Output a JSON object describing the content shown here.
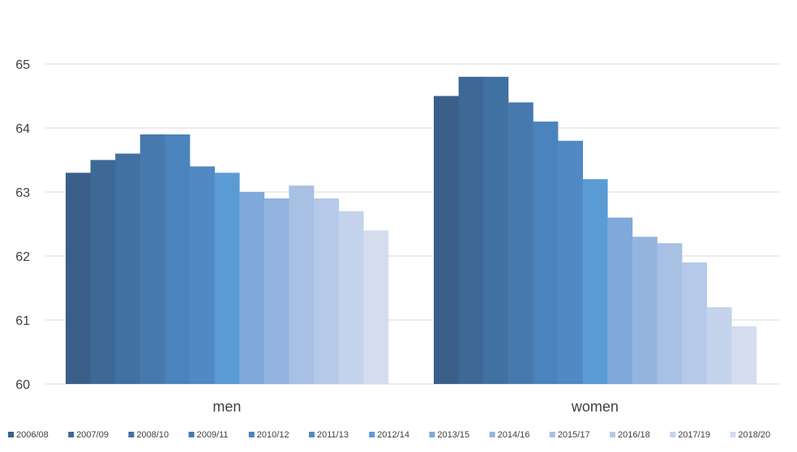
{
  "chart_data": {
    "type": "bar",
    "title": "",
    "xlabel": "",
    "ylabel": "",
    "ylim": [
      60,
      65
    ],
    "yticks": [
      60,
      61,
      62,
      63,
      64,
      65
    ],
    "grid": true,
    "legend_position": "bottom",
    "categories": [
      "men",
      "women"
    ],
    "series": [
      {
        "name": "2006/08",
        "color": "#3a5f8a",
        "values": [
          63.3,
          64.5
        ]
      },
      {
        "name": "2007/09",
        "color": "#3e6896",
        "values": [
          63.5,
          64.8
        ]
      },
      {
        "name": "2008/10",
        "color": "#4170a2",
        "values": [
          63.6,
          64.8
        ]
      },
      {
        "name": "2009/11",
        "color": "#4779ae",
        "values": [
          63.9,
          64.4
        ]
      },
      {
        "name": "2010/12",
        "color": "#4b83bc",
        "values": [
          63.9,
          64.1
        ]
      },
      {
        "name": "2011/13",
        "color": "#5089c4",
        "values": [
          63.4,
          63.8
        ]
      },
      {
        "name": "2012/14",
        "color": "#5b9bd5",
        "values": [
          63.3,
          63.2
        ]
      },
      {
        "name": "2013/15",
        "color": "#7ea9da",
        "values": [
          63.0,
          62.6
        ]
      },
      {
        "name": "2014/16",
        "color": "#93b4df",
        "values": [
          62.9,
          62.3
        ]
      },
      {
        "name": "2015/17",
        "color": "#a7c0e4",
        "values": [
          63.1,
          62.2
        ]
      },
      {
        "name": "2016/18",
        "color": "#b5cae8",
        "values": [
          62.9,
          61.9
        ]
      },
      {
        "name": "2017/19",
        "color": "#c3d4ec",
        "values": [
          62.7,
          61.2
        ]
      },
      {
        "name": "2018/20",
        "color": "#d3ddee",
        "values": [
          62.4,
          60.9
        ]
      }
    ]
  }
}
